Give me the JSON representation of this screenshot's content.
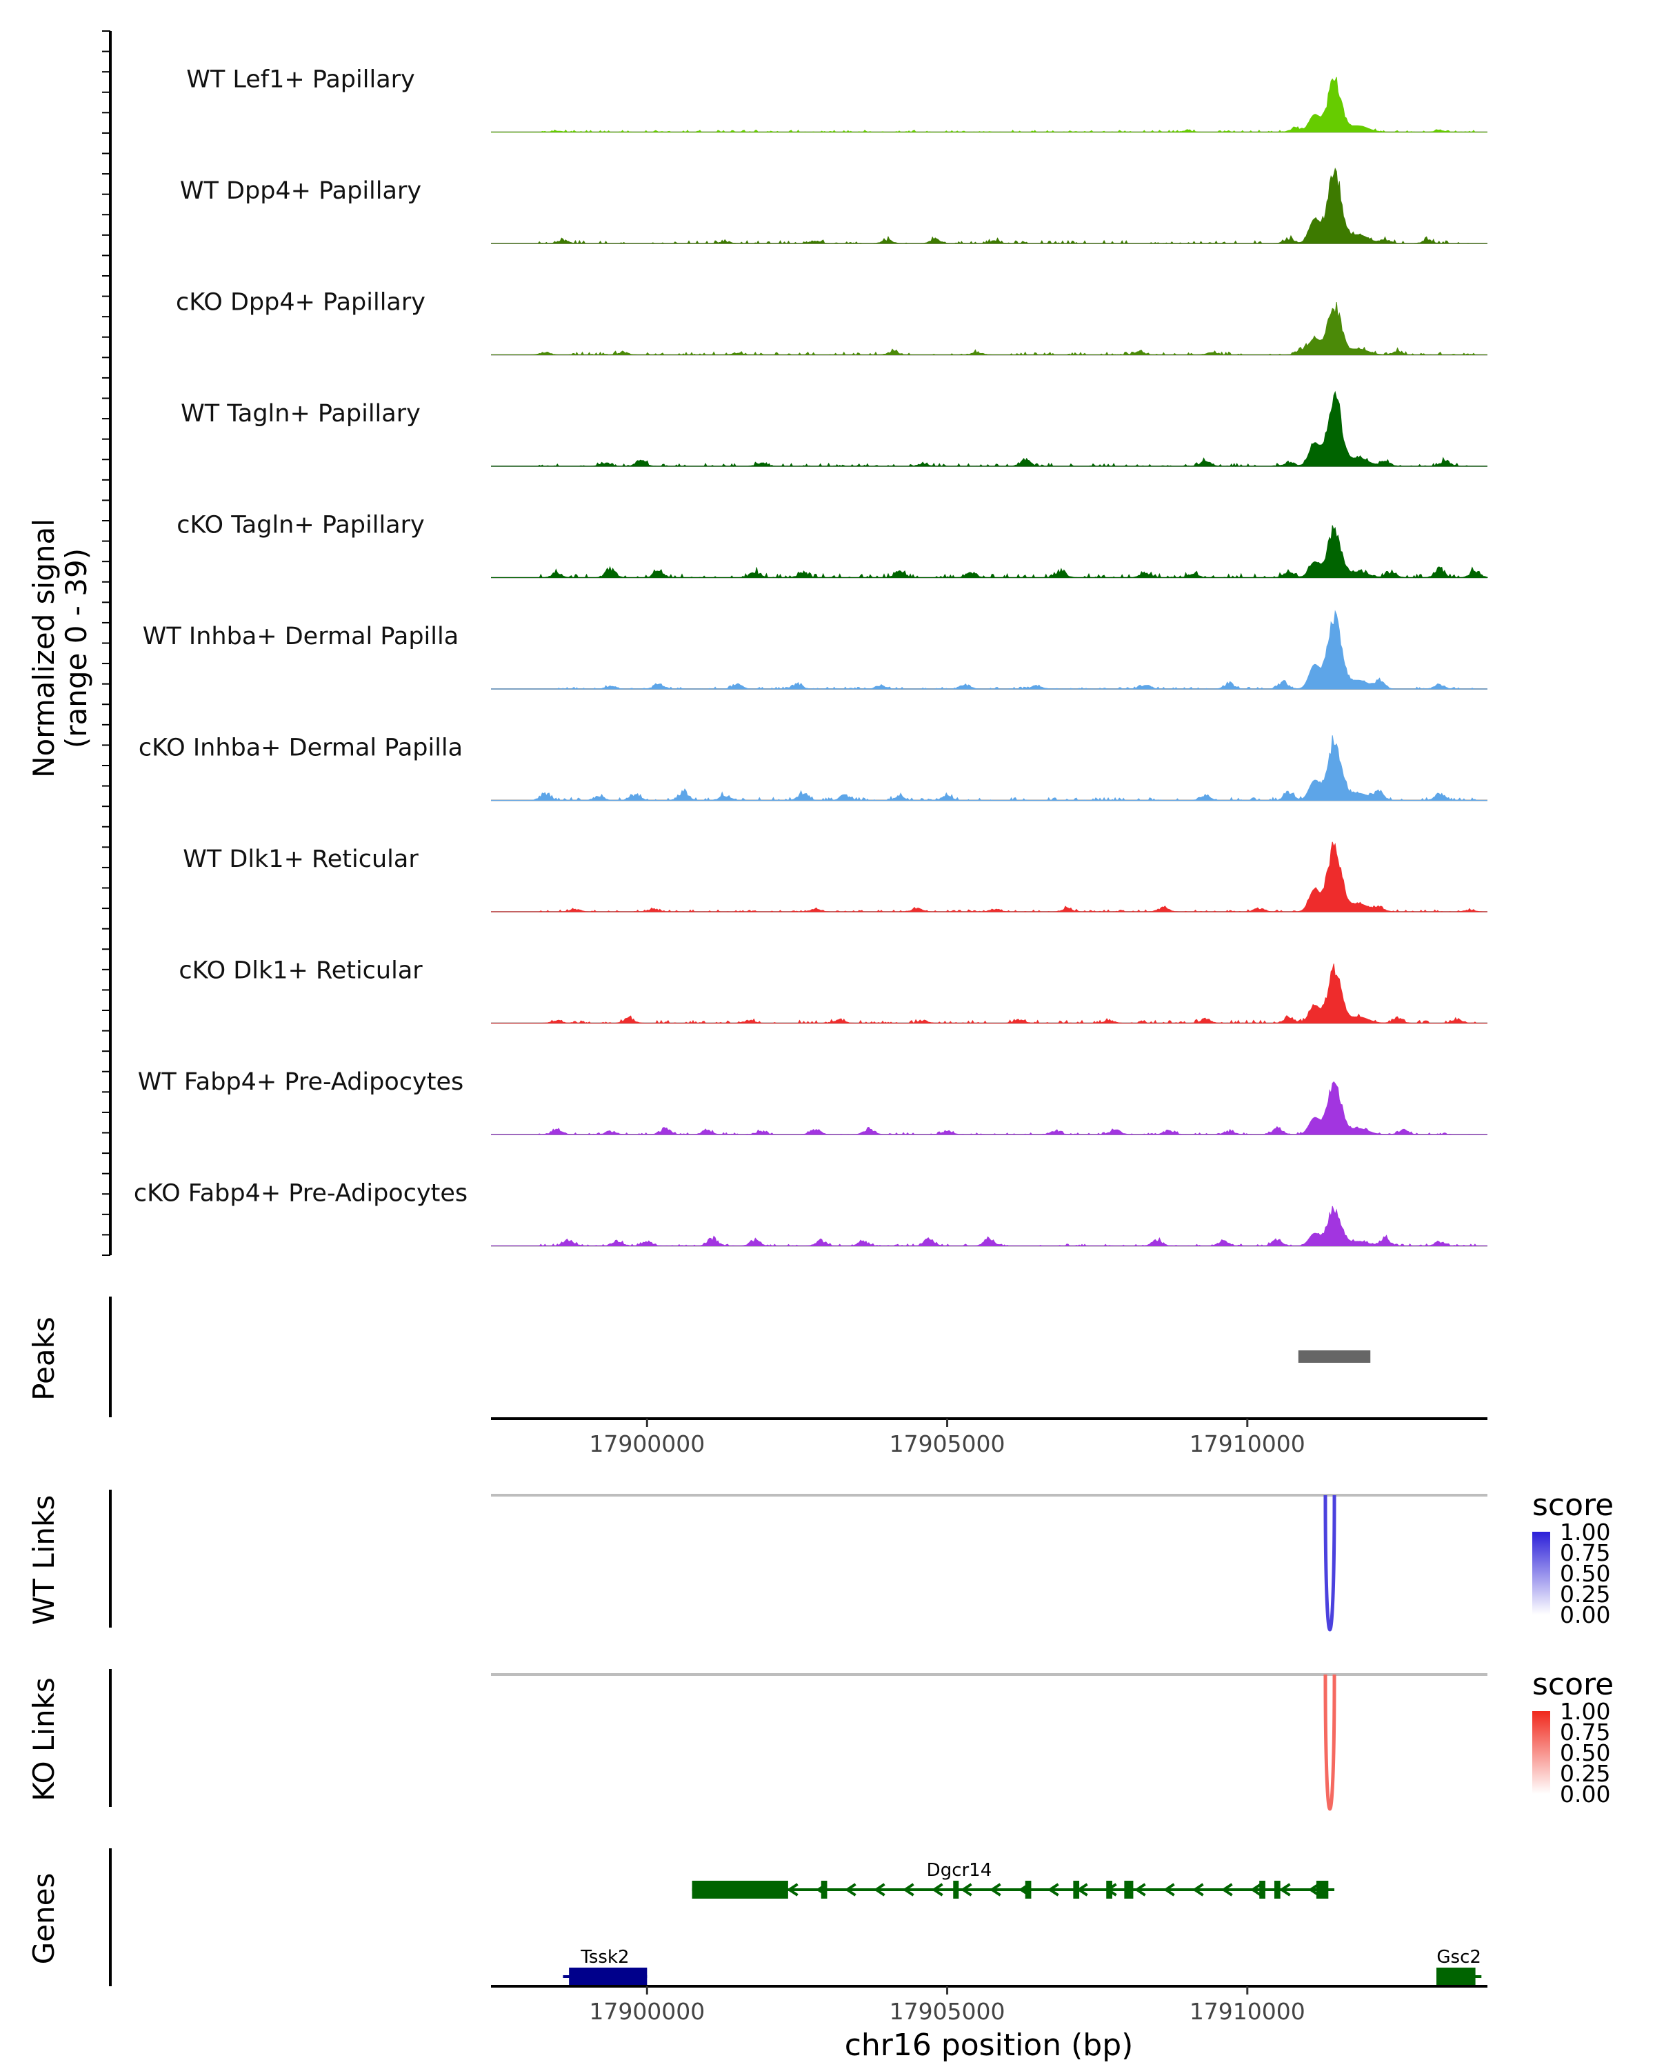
{
  "chart_data": {
    "type": "area",
    "region": "chr16:17897400-17914000",
    "signal_axis": {
      "label_line1": "Normalized signal",
      "label_line2": "(range 0 - 39)",
      "range": [
        0,
        39
      ]
    },
    "x_axis": {
      "label": "chr16 position (bp)",
      "xlim": [
        17897400,
        17914000
      ],
      "ticks": [
        17900000,
        17905000,
        17910000
      ],
      "tick_labels": [
        "17900000",
        "17905000",
        "17910000"
      ]
    },
    "tracks": [
      {
        "name": "WT Lef1+ Papillary",
        "color": "#66CC00",
        "peak": 28,
        "bg": 1.0,
        "noise": [
          [
            17898500,
            0.6
          ],
          [
            17909000,
            0.8
          ],
          [
            17910800,
            2.5
          ],
          [
            17913200,
            0.9
          ]
        ]
      },
      {
        "name": "WT Dpp4+ Papillary",
        "color": "#3D7A00",
        "peak": 39,
        "bg": 1.5,
        "noise": [
          [
            17898600,
            2.0
          ],
          [
            17901300,
            1.0
          ],
          [
            17902800,
            1.5
          ],
          [
            17904000,
            2.0
          ],
          [
            17904800,
            2.5
          ],
          [
            17905800,
            1.5
          ],
          [
            17910700,
            3.0
          ],
          [
            17912300,
            2.5
          ],
          [
            17913000,
            2.0
          ]
        ]
      },
      {
        "name": "cKO Dpp4+ Papillary",
        "color": "#4B8A08",
        "peak": 26,
        "bg": 1.5,
        "noise": [
          [
            17898300,
            1.5
          ],
          [
            17899600,
            1.5
          ],
          [
            17901500,
            1.0
          ],
          [
            17904100,
            2.0
          ],
          [
            17905500,
            1.5
          ],
          [
            17908200,
            2.0
          ],
          [
            17909400,
            1.5
          ],
          [
            17910900,
            3.5
          ],
          [
            17912500,
            2.0
          ]
        ]
      },
      {
        "name": "WT Tagln+ Papillary",
        "color": "#006400",
        "peak": 37,
        "bg": 1.5,
        "noise": [
          [
            17899300,
            2.0
          ],
          [
            17899900,
            3.5
          ],
          [
            17901900,
            2.0
          ],
          [
            17904600,
            1.5
          ],
          [
            17906300,
            4.0
          ],
          [
            17909300,
            3.5
          ],
          [
            17910700,
            2.5
          ],
          [
            17912300,
            3.0
          ],
          [
            17913300,
            3.0
          ]
        ]
      },
      {
        "name": "cKO Tagln+ Papillary",
        "color": "#006400",
        "peak": 25,
        "bg": 2.0,
        "noise": [
          [
            17898500,
            2.5
          ],
          [
            17899400,
            5.0
          ],
          [
            17900200,
            4.0
          ],
          [
            17901800,
            3.5
          ],
          [
            17902600,
            3.0
          ],
          [
            17904200,
            3.5
          ],
          [
            17905400,
            3.0
          ],
          [
            17906900,
            4.0
          ],
          [
            17908300,
            3.0
          ],
          [
            17909100,
            2.5
          ],
          [
            17910700,
            4.0
          ],
          [
            17912400,
            3.5
          ],
          [
            17913200,
            5.0
          ],
          [
            17913800,
            4.0
          ]
        ]
      },
      {
        "name": "WT Inhba+ Dermal Papilla",
        "color": "#5DA5E8",
        "peak": 39,
        "bg": 1.0,
        "noise": [
          [
            17899400,
            1.5
          ],
          [
            17900200,
            3.0
          ],
          [
            17901500,
            2.5
          ],
          [
            17902500,
            3.0
          ],
          [
            17903900,
            2.0
          ],
          [
            17905300,
            2.5
          ],
          [
            17906500,
            2.0
          ],
          [
            17908300,
            2.5
          ],
          [
            17909700,
            3.5
          ],
          [
            17910600,
            4.0
          ],
          [
            17912200,
            4.5
          ],
          [
            17913200,
            2.5
          ]
        ]
      },
      {
        "name": "cKO Inhba+ Dermal Papilla",
        "color": "#5DA5E8",
        "peak": 32,
        "bg": 1.5,
        "noise": [
          [
            17898300,
            4.0
          ],
          [
            17899200,
            2.5
          ],
          [
            17899800,
            3.5
          ],
          [
            17900600,
            5.0
          ],
          [
            17901300,
            3.0
          ],
          [
            17902600,
            4.0
          ],
          [
            17903300,
            3.0
          ],
          [
            17904200,
            2.5
          ],
          [
            17905000,
            3.0
          ],
          [
            17909300,
            3.0
          ],
          [
            17910700,
            5.0
          ],
          [
            17912200,
            5.0
          ],
          [
            17913200,
            4.0
          ]
        ]
      },
      {
        "name": "WT Dlk1+ Reticular",
        "color": "#EE2C2C",
        "peak": 36,
        "bg": 1.0,
        "noise": [
          [
            17898800,
            1.5
          ],
          [
            17900100,
            1.5
          ],
          [
            17902800,
            1.5
          ],
          [
            17904500,
            2.0
          ],
          [
            17905800,
            1.5
          ],
          [
            17907000,
            2.0
          ],
          [
            17908600,
            2.5
          ],
          [
            17910200,
            2.0
          ],
          [
            17912200,
            2.5
          ],
          [
            17913700,
            1.0
          ]
        ]
      },
      {
        "name": "cKO Dlk1+ Reticular",
        "color": "#EE2C2C",
        "peak": 28,
        "bg": 1.5,
        "noise": [
          [
            17898500,
            1.5
          ],
          [
            17899700,
            3.0
          ],
          [
            17901700,
            1.5
          ],
          [
            17903200,
            2.0
          ],
          [
            17904600,
            1.5
          ],
          [
            17906200,
            2.0
          ],
          [
            17907700,
            1.5
          ],
          [
            17909300,
            2.5
          ],
          [
            17910700,
            3.5
          ],
          [
            17912500,
            3.0
          ],
          [
            17913500,
            2.0
          ]
        ]
      },
      {
        "name": "WT Fabp4+ Pre-Adipocytes",
        "color": "#A235E0",
        "peak": 27,
        "bg": 1.0,
        "noise": [
          [
            17898500,
            3.0
          ],
          [
            17899400,
            2.0
          ],
          [
            17900300,
            3.5
          ],
          [
            17901000,
            2.5
          ],
          [
            17901900,
            2.0
          ],
          [
            17902800,
            3.0
          ],
          [
            17903700,
            3.5
          ],
          [
            17905000,
            2.0
          ],
          [
            17906800,
            2.0
          ],
          [
            17907800,
            3.0
          ],
          [
            17908700,
            2.5
          ],
          [
            17909700,
            2.0
          ],
          [
            17910500,
            3.5
          ],
          [
            17912600,
            2.5
          ]
        ]
      },
      {
        "name": "cKO Fabp4+ Pre-Adipocytes",
        "color": "#A235E0",
        "peak": 20,
        "bg": 1.0,
        "noise": [
          [
            17898700,
            3.5
          ],
          [
            17899500,
            3.0
          ],
          [
            17900000,
            2.5
          ],
          [
            17901100,
            4.5
          ],
          [
            17901800,
            3.5
          ],
          [
            17902900,
            3.0
          ],
          [
            17903600,
            2.5
          ],
          [
            17904700,
            4.0
          ],
          [
            17905700,
            4.5
          ],
          [
            17908500,
            3.5
          ],
          [
            17909600,
            3.0
          ],
          [
            17910500,
            3.5
          ],
          [
            17912300,
            4.5
          ],
          [
            17913200,
            2.5
          ]
        ]
      }
    ],
    "peaks": {
      "label": "Peaks",
      "regions": [
        {
          "start": 17910850,
          "end": 17912050
        }
      ]
    },
    "wt_links": {
      "label": "WT Links",
      "legend_title": "score",
      "legend_ticks": [
        "1.00",
        "0.75",
        "0.50",
        "0.25",
        "0.00"
      ],
      "scale_low": "#FFFFFF",
      "scale_high": "#2B1FD8",
      "links": [
        {
          "start": 17911300,
          "end": 17911450,
          "score": 0.85
        }
      ]
    },
    "ko_links": {
      "label": "KO Links",
      "legend_title": "score",
      "legend_ticks": [
        "1.00",
        "0.75",
        "0.50",
        "0.25",
        "0.00"
      ],
      "scale_low": "#FFFFFF",
      "scale_high": "#F0281C",
      "links": [
        {
          "start": 17911300,
          "end": 17911450,
          "score": 0.7
        }
      ]
    },
    "genes": {
      "label": "Genes",
      "list": [
        {
          "name": "Dgcr14",
          "color": "#006400",
          "strand": "-",
          "row": 1,
          "start": 17900750,
          "end": 17911450,
          "exons": [
            [
              17900750,
              17902350
            ],
            [
              17902900,
              17903000
            ],
            [
              17905100,
              17905180
            ],
            [
              17906300,
              17906400
            ],
            [
              17907100,
              17907200
            ],
            [
              17907650,
              17907750
            ],
            [
              17907950,
              17908100
            ],
            [
              17910200,
              17910300
            ],
            [
              17910450,
              17910550
            ],
            [
              17911150,
              17911350
            ]
          ]
        },
        {
          "name": "Tssk2",
          "color": "#00008B",
          "strand": "+",
          "row": 2,
          "start": 17898600,
          "end": 17900000,
          "exons": [
            [
              17898700,
              17900000
            ]
          ]
        },
        {
          "name": "Gsc2",
          "color": "#006400",
          "strand": "-",
          "row": 2,
          "start": 17913150,
          "end": 17913900,
          "exons": [
            [
              17913150,
              17913800
            ]
          ]
        }
      ]
    }
  }
}
